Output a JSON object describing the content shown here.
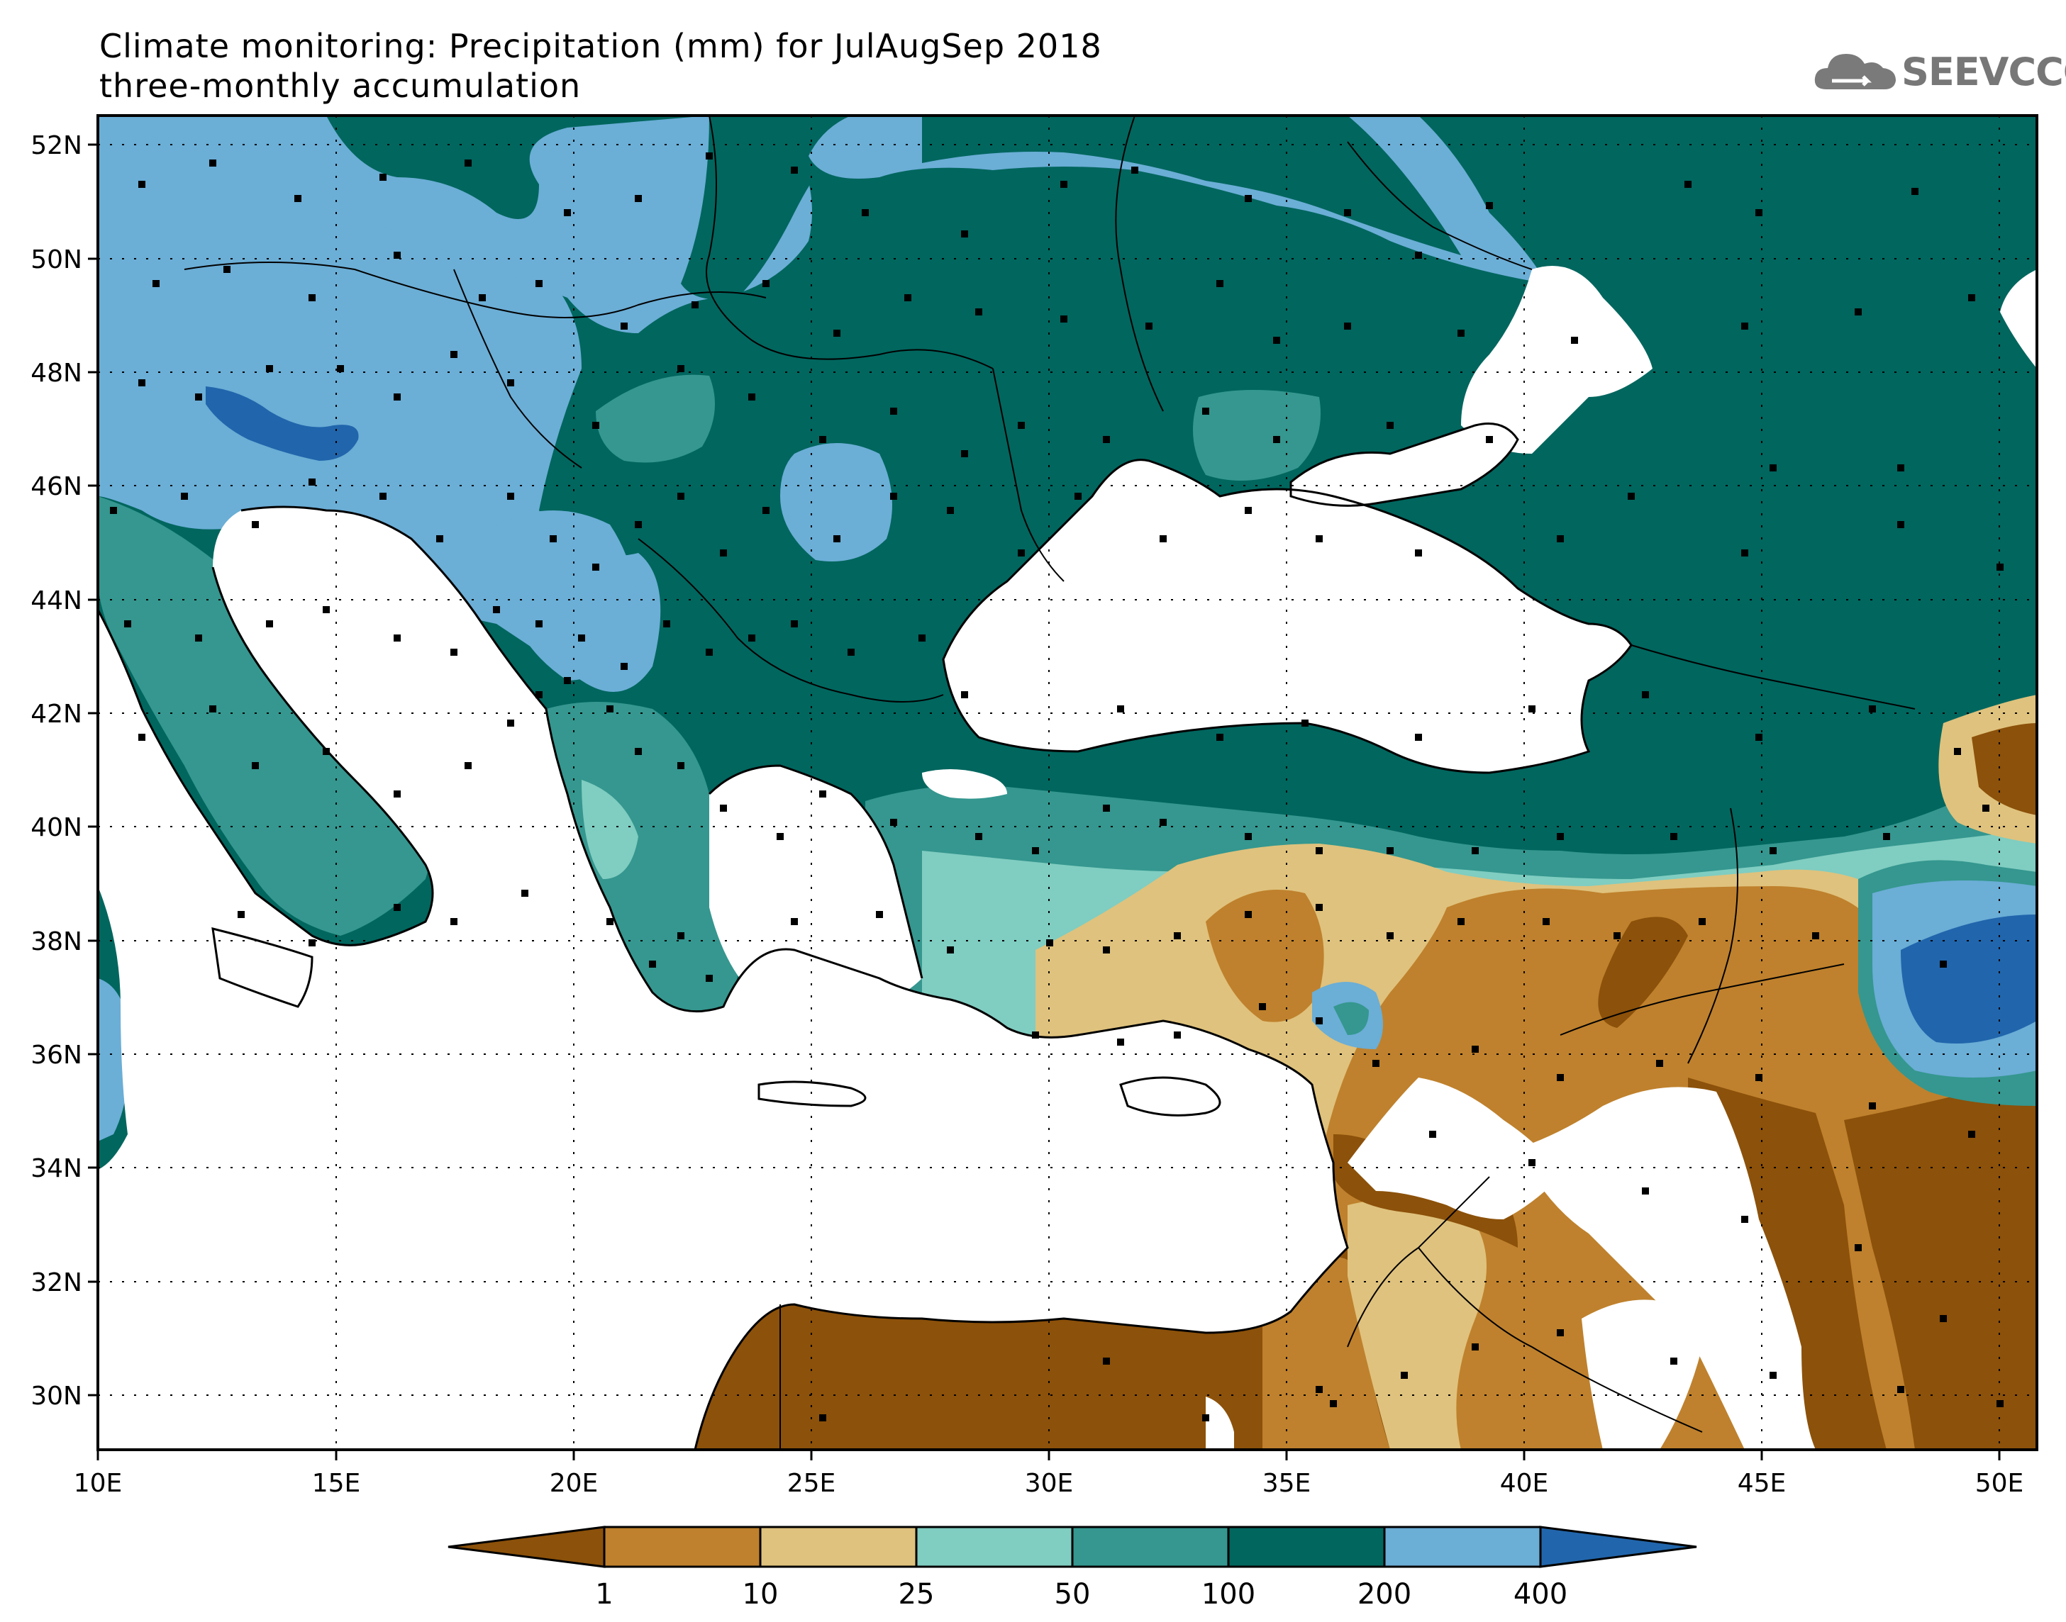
{
  "title": {
    "line1": "Climate monitoring: Precipitation (mm) for JulAugSep 2018",
    "line2": "three-monthly accumulation"
  },
  "logo": {
    "text": "SEEVCCC",
    "icon": "cloud-icon"
  },
  "axes": {
    "lon_labels": [
      "10E",
      "15E",
      "20E",
      "25E",
      "30E",
      "35E",
      "40E",
      "45E",
      "50E"
    ],
    "lat_labels": [
      "52N",
      "50N",
      "48N",
      "46N",
      "44N",
      "42N",
      "40N",
      "38N",
      "36N",
      "34N",
      "32N",
      "30N"
    ]
  },
  "colorbar": {
    "labels": [
      "1",
      "10",
      "25",
      "50",
      "100",
      "200",
      "400"
    ],
    "colors": [
      "#8c510a",
      "#bf812d",
      "#dfc27d",
      "#80cdc1",
      "#35978f",
      "#01665e",
      "#6baed6",
      "#2166ac"
    ]
  },
  "colors": {
    "land_base": "#01665e",
    "sea": "#ffffff"
  },
  "chart_data": {
    "type": "heatmap",
    "variable": "Precipitation (mm)",
    "period": "JulAugSep 2018",
    "lon_range": [
      10,
      51
    ],
    "lat_range": [
      29,
      52.5
    ],
    "class_boundaries": [
      1,
      10,
      25,
      50,
      100,
      200,
      400
    ]
  }
}
